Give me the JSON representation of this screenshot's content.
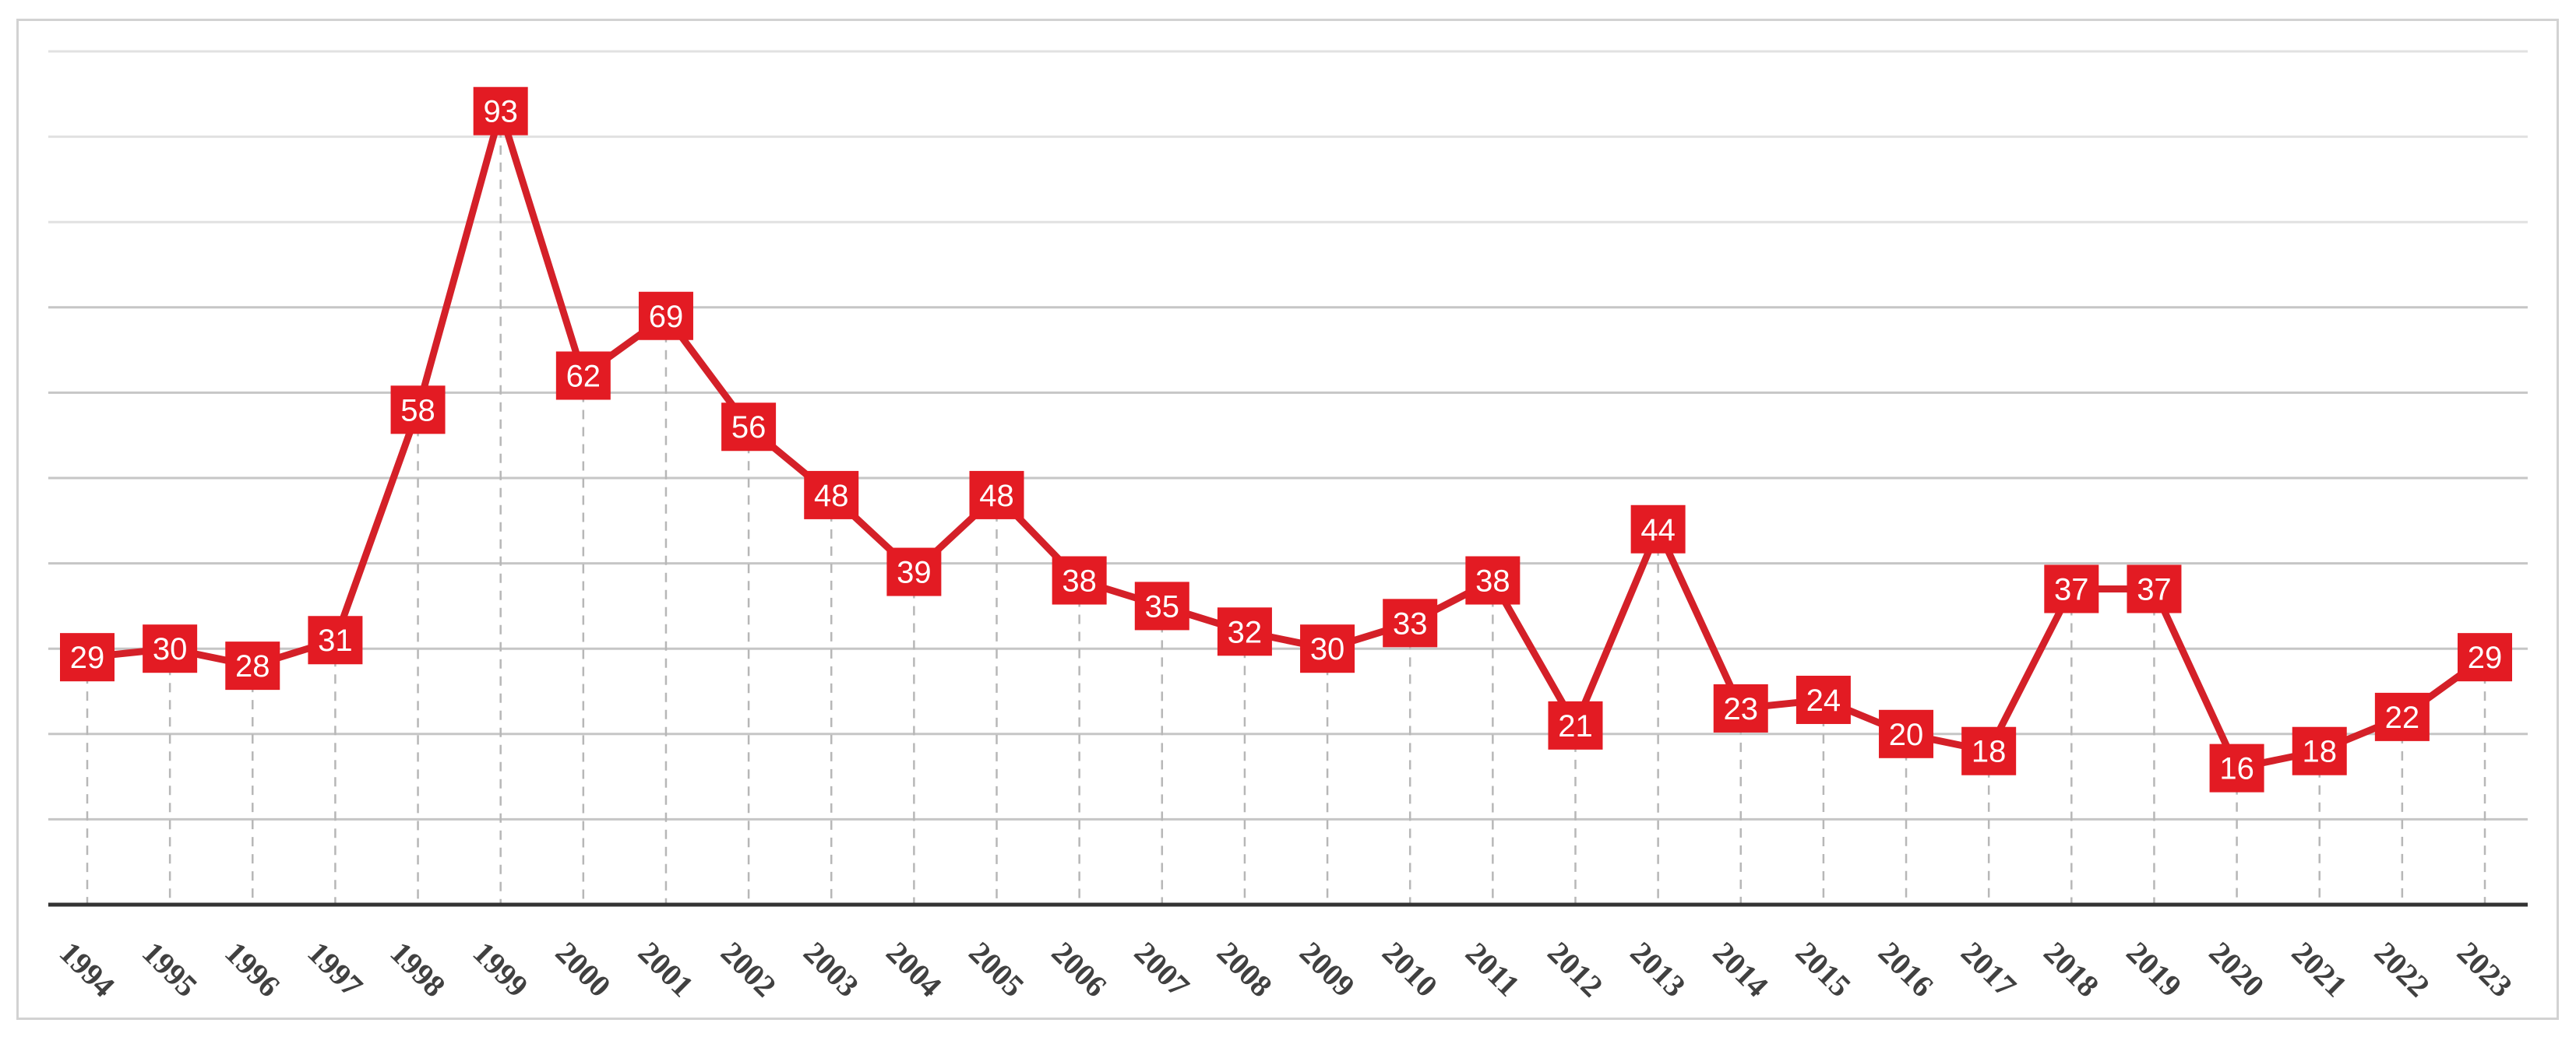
{
  "chart_data": {
    "type": "line",
    "title": "",
    "xlabel": "",
    "ylabel": "",
    "categories": [
      "1994",
      "1995",
      "1996",
      "1997",
      "1998",
      "1999",
      "2000",
      "2001",
      "2002",
      "2003",
      "2004",
      "2005",
      "2006",
      "2007",
      "2008",
      "2009",
      "2010",
      "2011",
      "2012",
      "2013",
      "2014",
      "2015",
      "2016",
      "2017",
      "2018",
      "2019",
      "2020",
      "2021",
      "2022",
      "2023"
    ],
    "series": [
      {
        "color": "#e31b23",
        "line_color": "#d42028",
        "values": [
          29,
          30,
          28,
          31,
          58,
          93,
          62,
          69,
          56,
          48,
          39,
          48,
          38,
          35,
          32,
          30,
          33,
          38,
          21,
          44,
          23,
          24,
          20,
          18,
          37,
          37,
          16,
          18,
          22,
          29
        ]
      }
    ],
    "ylim": [
      0,
      100
    ],
    "grid": true,
    "y_tick_labels_visible": false,
    "data_labels": true,
    "x_tick_rotation_deg": 45
  }
}
